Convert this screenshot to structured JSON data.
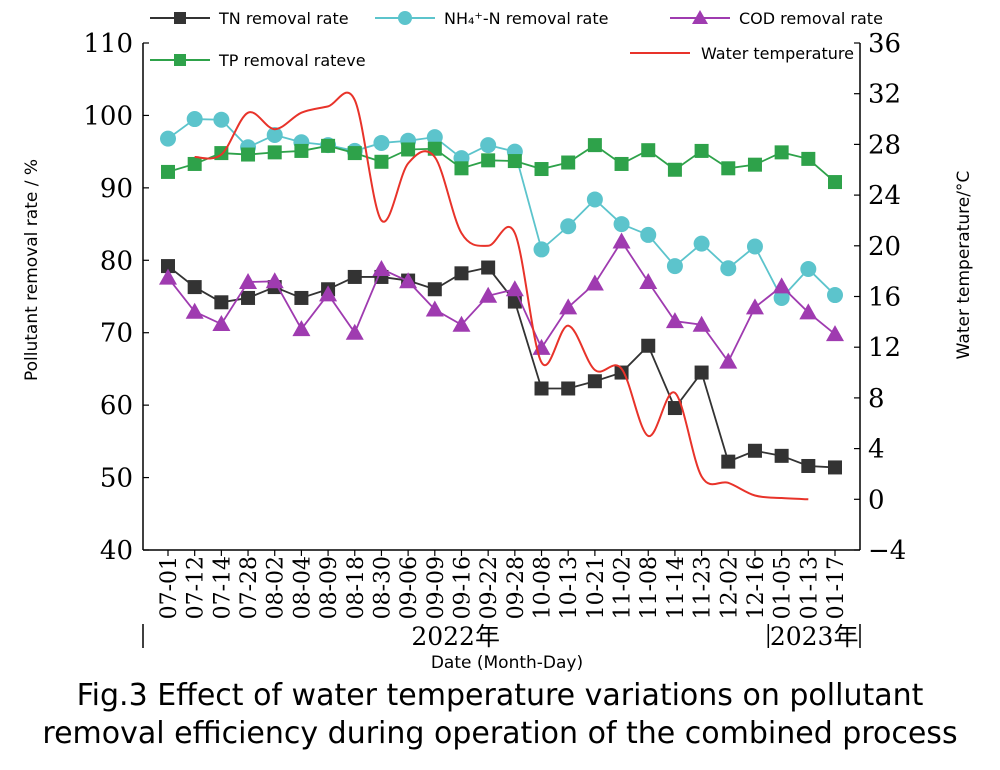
{
  "chart_data": {
    "type": "line",
    "xlabel": "Date (Month-Day)",
    "ylabel": "Pollutant removal rate / %",
    "y2label": "Water temperature/°C",
    "ylim": [
      40,
      110
    ],
    "y_ticks": [
      "40",
      "50",
      "60",
      "70",
      "80",
      "90",
      "100",
      "110"
    ],
    "y2lim": [
      -4,
      36
    ],
    "y2_ticks": [
      "−4",
      "0",
      "4",
      "8",
      "12",
      "16",
      "20",
      "24",
      "28",
      "32",
      "36"
    ],
    "categories": [
      "07-01",
      "07-12",
      "07-14",
      "07-28",
      "08-02",
      "08-04",
      "08-09",
      "08-18",
      "08-30",
      "09-06",
      "09-09",
      "09-16",
      "09-22",
      "09-28",
      "10-08",
      "10-13",
      "10-21",
      "11-02",
      "11-08",
      "11-14",
      "11-23",
      "12-02",
      "12-16",
      "01-05",
      "01-13",
      "01-17"
    ],
    "year_groups": [
      {
        "label": "2022年",
        "from": 0,
        "to": 22
      },
      {
        "label": "2023年",
        "from": 23,
        "to": 25
      }
    ],
    "series": [
      {
        "name": "TN removal rate",
        "axis": "left",
        "color": "#333333",
        "marker": "square",
        "values": [
          79.2,
          76.3,
          74.2,
          74.8,
          76.3,
          74.8,
          76.0,
          77.7,
          77.7,
          77.2,
          76.0,
          78.2,
          79.0,
          74.3,
          62.3,
          62.3,
          63.3,
          64.5,
          68.2,
          59.6,
          64.5,
          52.2,
          53.7,
          53.0,
          51.6,
          51.4
        ]
      },
      {
        "name": "NH₄⁺-N removal rate",
        "axis": "left",
        "color": "#5cc4cc",
        "marker": "circle",
        "values": [
          96.8,
          99.5,
          99.4,
          95.6,
          97.3,
          96.3,
          95.9,
          95.1,
          96.2,
          96.5,
          97.0,
          94.1,
          95.9,
          95.0,
          81.5,
          84.7,
          88.4,
          85.0,
          83.5,
          79.2,
          82.3,
          78.9,
          81.9,
          74.8,
          78.8,
          75.2
        ]
      },
      {
        "name": "COD removal rate",
        "axis": "left",
        "color": "#9f3bb0",
        "marker": "triangle",
        "values": [
          77.6,
          72.9,
          71.2,
          77.0,
          77.1,
          70.5,
          75.3,
          70.0,
          78.8,
          77.1,
          73.2,
          71.1,
          75.1,
          76.0,
          67.9,
          73.5,
          76.8,
          82.6,
          77.0,
          71.6,
          71.1,
          66.0,
          73.5,
          76.4,
          72.8,
          69.8
        ]
      },
      {
        "name": "TP removal rateve",
        "axis": "left",
        "color": "#2ea24a",
        "marker": "square",
        "values": [
          92.2,
          93.3,
          94.8,
          94.6,
          94.9,
          95.1,
          95.8,
          94.8,
          93.6,
          95.3,
          95.4,
          92.7,
          93.8,
          93.7,
          92.6,
          93.5,
          95.9,
          93.3,
          95.2,
          92.5,
          95.1,
          92.7,
          93.2,
          94.9,
          94.0,
          90.8
        ]
      },
      {
        "name": "Water temperature",
        "axis": "right",
        "color": "#e8332a",
        "marker": "none",
        "values": [
          null,
          27.0,
          27.2,
          30.5,
          29.2,
          30.5,
          31.0,
          31.5,
          22.0,
          26.5,
          27.0,
          21.0,
          20.0,
          21.0,
          10.8,
          13.7,
          10.2,
          10.3,
          5.0,
          8.4,
          1.8,
          1.3,
          0.3,
          0.1,
          0.0,
          null
        ]
      }
    ],
    "legend_placement": "top",
    "grid": false
  },
  "caption": {
    "line1": "Fig.3 Effect of water temperature variations on pollutant",
    "line2": "removal efficiency during operation of the combined process"
  }
}
